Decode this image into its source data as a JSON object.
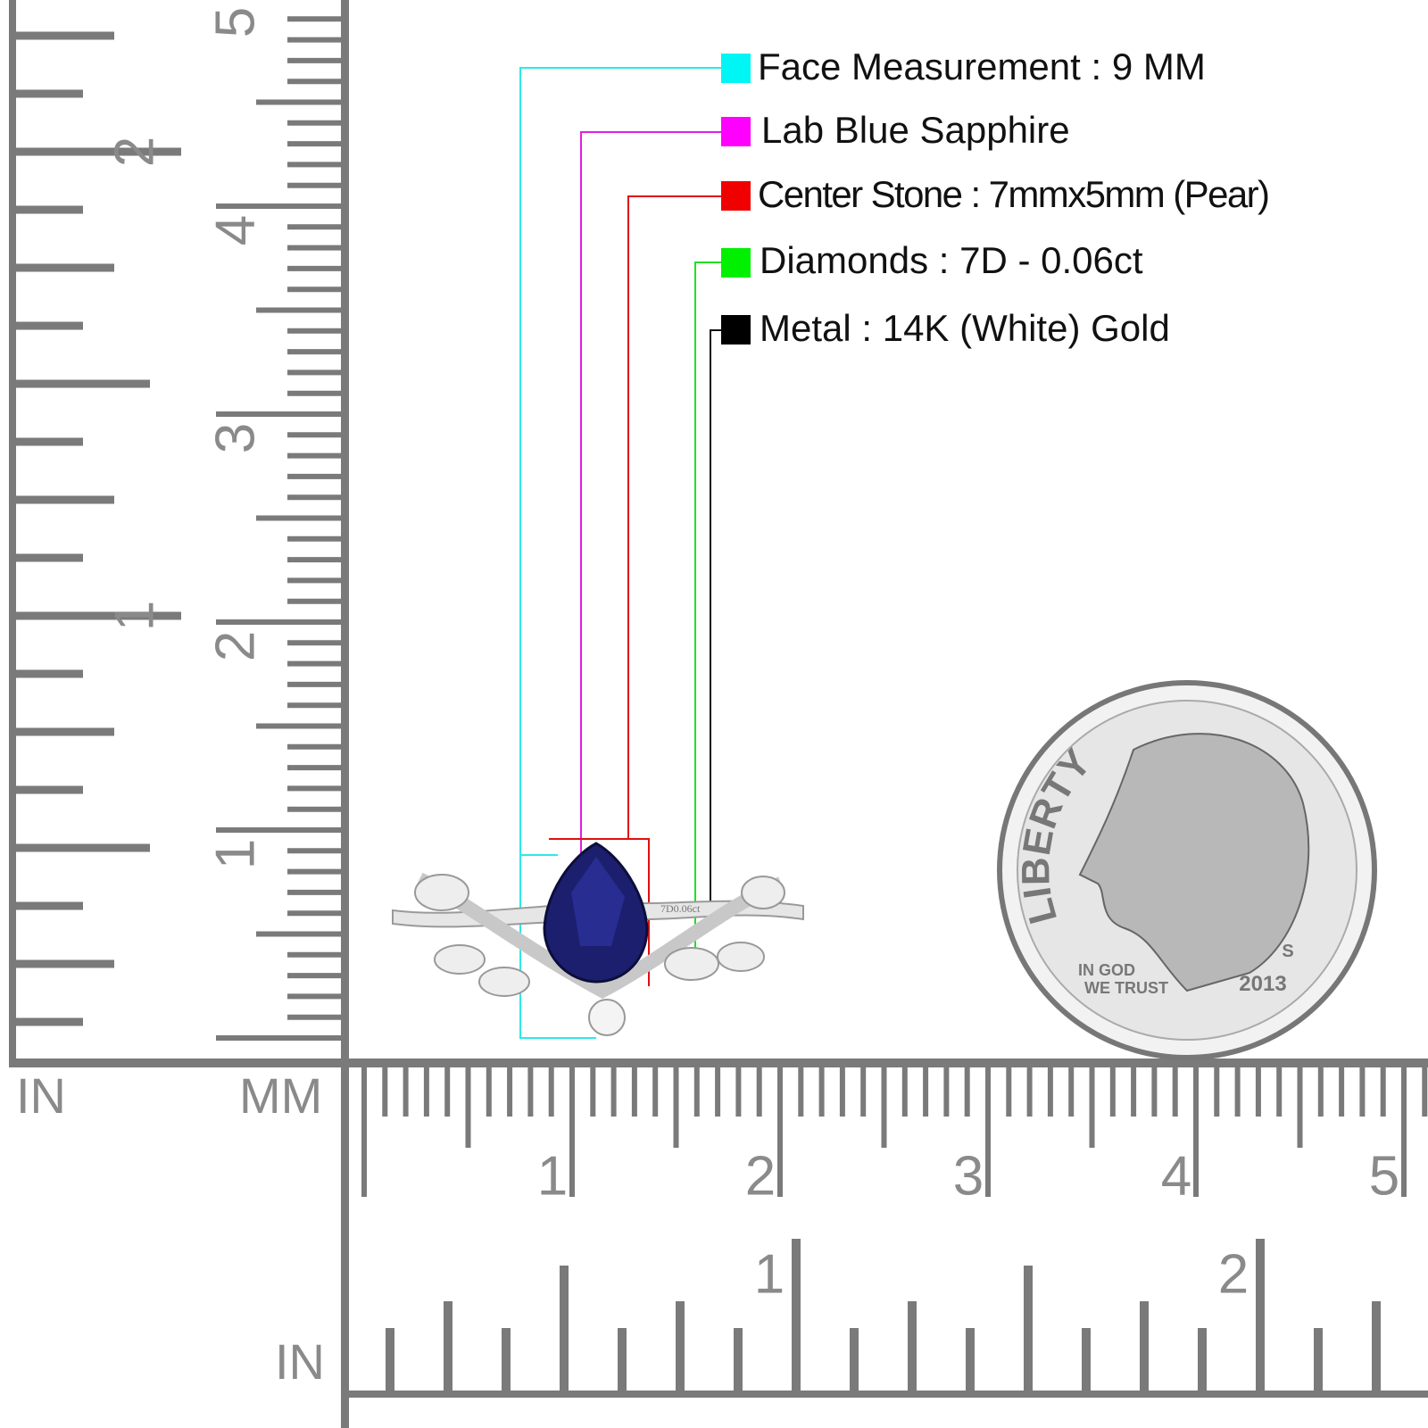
{
  "legend": [
    {
      "label": "Face Measurement : 9 MM"
    },
    {
      "label": "Lab Blue Sapphire"
    },
    {
      "label": "Center Stone : 7mmx5mm (Pear)"
    },
    {
      "label": "Diamonds : 7D - 0.06ct"
    },
    {
      "label": "Metal : 14K (White) Gold"
    }
  ],
  "left_ruler": {
    "inch_unit": "IN",
    "mm_unit": "MM",
    "inch_labels": [
      "2",
      "1"
    ],
    "cm_labels": [
      "5",
      "4",
      "3",
      "2",
      "1"
    ]
  },
  "bottom_ruler": {
    "inch_unit": "IN",
    "cm_labels": [
      "1",
      "2",
      "3",
      "4",
      "5"
    ],
    "inch_labels": [
      "1",
      "2"
    ]
  },
  "ring": {
    "engraving": "7D0.06ct"
  },
  "coin": {
    "legend": "LIBERTY",
    "motto_1": "IN GOD",
    "motto_2": "WE TRUST",
    "mint": "S",
    "year": "2013"
  }
}
